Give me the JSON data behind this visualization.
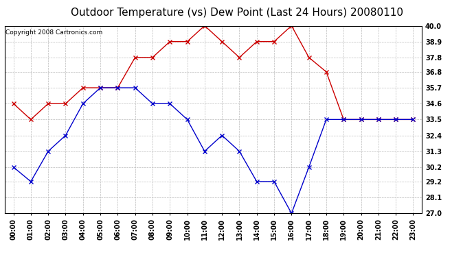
{
  "title": "Outdoor Temperature (vs) Dew Point (Last 24 Hours) 20080110",
  "copyright": "Copyright 2008 Cartronics.com",
  "hours": [
    "00:00",
    "01:00",
    "02:00",
    "03:00",
    "04:00",
    "05:00",
    "06:00",
    "07:00",
    "08:00",
    "09:00",
    "10:00",
    "11:00",
    "12:00",
    "13:00",
    "14:00",
    "15:00",
    "16:00",
    "17:00",
    "18:00",
    "19:00",
    "20:00",
    "21:00",
    "22:00",
    "23:00"
  ],
  "temp": [
    30.2,
    29.2,
    31.3,
    32.4,
    34.6,
    35.7,
    35.7,
    35.7,
    34.6,
    34.6,
    33.5,
    31.3,
    32.4,
    31.3,
    29.2,
    29.2,
    27.0,
    30.2,
    33.5,
    33.5,
    33.5,
    33.5,
    33.5,
    33.5
  ],
  "dew": [
    34.6,
    33.5,
    34.6,
    34.6,
    35.7,
    35.7,
    35.7,
    37.8,
    37.8,
    38.9,
    38.9,
    40.0,
    38.9,
    37.8,
    38.9,
    38.9,
    40.0,
    37.8,
    36.8,
    33.5,
    33.5,
    33.5,
    33.5,
    33.5
  ],
  "temp_color": "#0000cc",
  "dew_color": "#cc0000",
  "bg_color": "#ffffff",
  "grid_color": "#bbbbbb",
  "ylim_min": 27.0,
  "ylim_max": 40.0,
  "yticks": [
    27.0,
    28.1,
    29.2,
    30.2,
    31.3,
    32.4,
    33.5,
    34.6,
    35.7,
    36.8,
    37.8,
    38.9,
    40.0
  ],
  "title_fontsize": 11,
  "copyright_fontsize": 6.5,
  "tick_fontsize": 7,
  "marker_size": 3
}
